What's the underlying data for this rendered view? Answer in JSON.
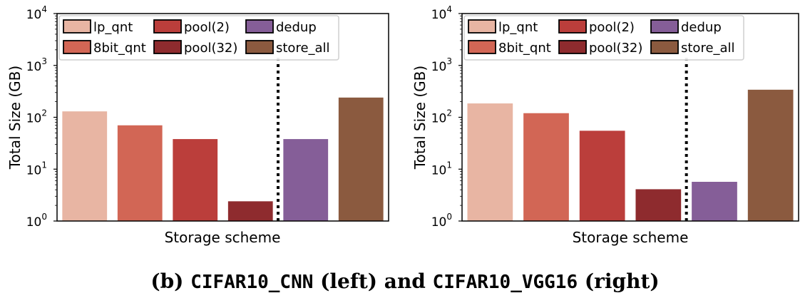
{
  "chart_data": [
    {
      "type": "bar",
      "name": "CIFAR10_CNN",
      "xlabel": "Storage scheme",
      "ylabel": "Total Size (GB)",
      "yscale": "log",
      "ylim": [
        1,
        10000
      ],
      "yticks": [
        {
          "base": "10",
          "exp": "0"
        },
        {
          "base": "10",
          "exp": "1"
        },
        {
          "base": "10",
          "exp": "2"
        },
        {
          "base": "10",
          "exp": "3"
        },
        {
          "base": "10",
          "exp": "4"
        }
      ],
      "categories": [
        "lp_qnt",
        "8bit_qnt",
        "pool(2)",
        "pool(32)",
        "dedup",
        "store_all"
      ],
      "values": [
        130,
        70,
        38,
        2.4,
        38,
        240
      ],
      "colors": [
        "#e8b5a3",
        "#d26655",
        "#bb3e3b",
        "#8e2b2e",
        "#855e98",
        "#8b5a3f"
      ],
      "divider_after_index": 3,
      "legend_position": "top"
    },
    {
      "type": "bar",
      "name": "CIFAR10_VGG16",
      "xlabel": "Storage scheme",
      "ylabel": "Total Size (GB)",
      "yscale": "log",
      "ylim": [
        1,
        10000
      ],
      "yticks": [
        {
          "base": "10",
          "exp": "0"
        },
        {
          "base": "10",
          "exp": "1"
        },
        {
          "base": "10",
          "exp": "2"
        },
        {
          "base": "10",
          "exp": "3"
        },
        {
          "base": "10",
          "exp": "4"
        }
      ],
      "categories": [
        "lp_qnt",
        "8bit_qnt",
        "pool(2)",
        "pool(32)",
        "dedup",
        "store_all"
      ],
      "values": [
        185,
        120,
        55,
        4.1,
        5.7,
        340
      ],
      "colors": [
        "#e8b5a3",
        "#d26655",
        "#bb3e3b",
        "#8e2b2e",
        "#855e98",
        "#8b5a3f"
      ],
      "divider_after_index": 3,
      "legend_position": "top"
    }
  ],
  "caption": {
    "prefix": "(b) ",
    "left_name": "CIFAR10_CNN",
    "middle": " (left) and ",
    "right_name": "CIFAR10_VGG16",
    "suffix": " (right)"
  }
}
